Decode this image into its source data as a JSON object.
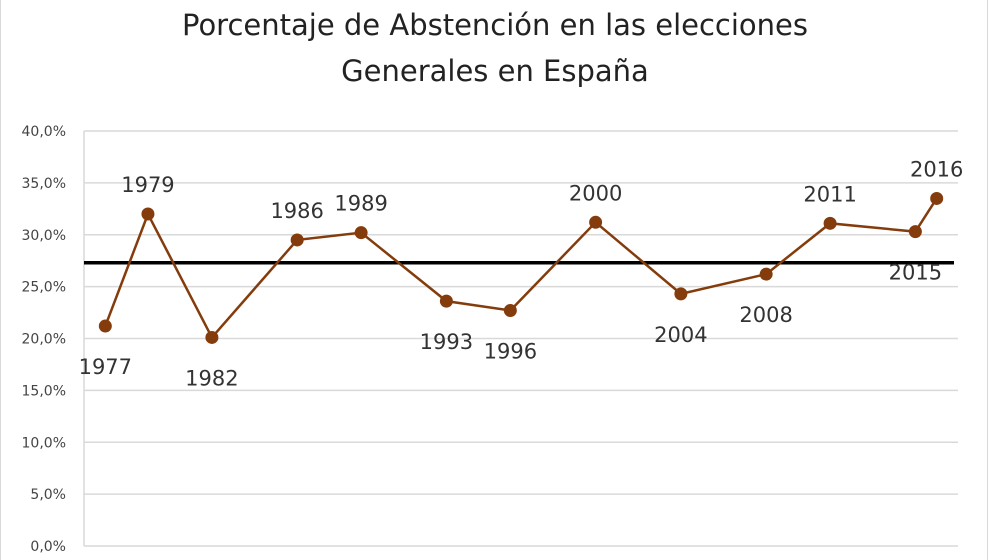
{
  "chart_data": {
    "type": "line",
    "title": [
      "Porcentaje de Abstención en las elecciones",
      "Generales en España"
    ],
    "xlabel": "",
    "ylabel": "",
    "ylim": [
      0,
      40
    ],
    "xlim": [
      1976,
      2017
    ],
    "yticks": [
      "0,0%",
      "5,0%",
      "10,0%",
      "15,0%",
      "20,0%",
      "25,0%",
      "30,0%",
      "35,0%",
      "40,0%"
    ],
    "grid": true,
    "legend": "none",
    "series": [
      {
        "x": [
          1977,
          1979,
          1982,
          1986,
          1989,
          1993,
          1996,
          2000,
          2004,
          2008,
          2011,
          2015,
          2016
        ],
        "values": [
          21.2,
          32.0,
          20.1,
          29.5,
          30.2,
          23.6,
          22.7,
          31.2,
          24.3,
          26.2,
          31.1,
          30.3,
          33.5
        ],
        "labels": [
          "1977",
          "1979",
          "1982",
          "1986",
          "1989",
          "1993",
          "1996",
          "2000",
          "2004",
          "2008",
          "2011",
          "2015",
          "2016"
        ],
        "label_position": [
          "below",
          "above",
          "below",
          "above",
          "above",
          "below",
          "below",
          "above",
          "below",
          "below",
          "above",
          "below",
          "above"
        ],
        "color": "#843c0c"
      }
    ],
    "average_line": {
      "value": 27.3,
      "color": "#000000"
    }
  }
}
